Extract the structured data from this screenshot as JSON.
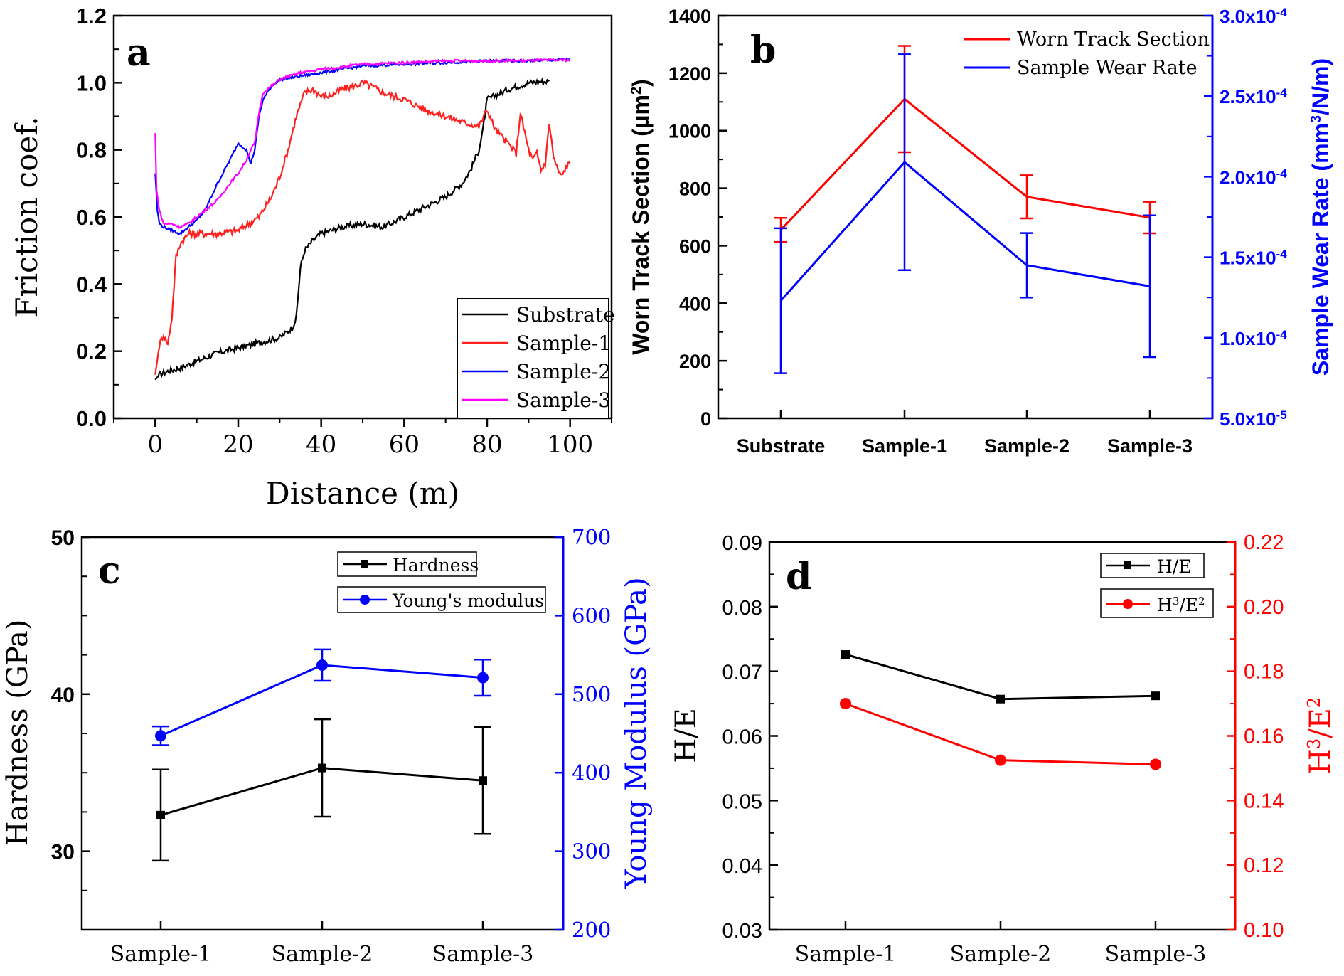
{
  "colors": {
    "black": "#000000",
    "red": "#ff0000",
    "blue": "#0000ff",
    "magenta": "#ff00ff",
    "redPlot": "#ff2020"
  },
  "chart_data": [
    {
      "id": "a",
      "panel_label": "a",
      "type": "line",
      "xlabel": "Distance (m)",
      "ylabel": "Friction coef.",
      "xlim": [
        -10,
        110
      ],
      "ylim": [
        0,
        1.2
      ],
      "xticks": [
        "0",
        "20",
        "40",
        "60",
        "80",
        "100"
      ],
      "yticks": [
        "0.0",
        "0.2",
        "0.4",
        "0.6",
        "0.8",
        "1.0",
        "1.2"
      ],
      "legend_position": "bottom-right",
      "series": [
        {
          "name": "Substrate",
          "color": "#000000",
          "x": [
            0,
            1,
            3,
            6,
            10,
            15,
            20,
            25,
            30,
            33,
            34,
            35,
            36,
            38,
            40,
            45,
            50,
            55,
            60,
            65,
            70,
            74,
            76,
            78,
            79,
            80,
            85,
            90,
            95
          ],
          "y": [
            0.115,
            0.13,
            0.14,
            0.15,
            0.17,
            0.195,
            0.21,
            0.225,
            0.24,
            0.27,
            0.3,
            0.45,
            0.5,
            0.53,
            0.55,
            0.57,
            0.58,
            0.57,
            0.6,
            0.63,
            0.66,
            0.7,
            0.74,
            0.8,
            0.86,
            0.95,
            0.98,
            1.0,
            1.005
          ]
        },
        {
          "name": "Sample-1",
          "color": "#ff2020",
          "x": [
            0,
            1,
            2,
            3,
            4,
            5,
            6,
            8,
            10,
            15,
            20,
            25,
            28,
            30,
            32,
            34,
            36,
            38,
            40,
            42,
            45,
            48,
            50,
            52,
            55,
            60,
            65,
            70,
            75,
            78,
            80,
            82,
            85,
            87,
            88,
            90,
            91,
            92,
            93,
            94,
            95,
            96,
            97,
            98,
            99,
            100
          ],
          "y": [
            0.13,
            0.22,
            0.25,
            0.22,
            0.3,
            0.48,
            0.52,
            0.55,
            0.55,
            0.55,
            0.56,
            0.6,
            0.66,
            0.72,
            0.8,
            0.9,
            0.97,
            0.98,
            0.96,
            0.96,
            0.98,
            0.99,
            1.0,
            0.99,
            0.97,
            0.95,
            0.92,
            0.9,
            0.88,
            0.87,
            0.92,
            0.86,
            0.82,
            0.79,
            0.91,
            0.8,
            0.77,
            0.79,
            0.74,
            0.76,
            0.88,
            0.78,
            0.74,
            0.72,
            0.75,
            0.76
          ]
        },
        {
          "name": "Sample-2",
          "color": "#0000ff",
          "x": [
            0,
            0.5,
            1,
            2,
            4,
            6,
            8,
            10,
            12,
            15,
            18,
            20,
            22,
            23,
            24,
            25,
            26,
            28,
            30,
            35,
            40,
            50,
            60,
            70,
            80,
            90,
            100
          ],
          "y": [
            0.73,
            0.62,
            0.58,
            0.57,
            0.56,
            0.55,
            0.57,
            0.59,
            0.62,
            0.7,
            0.77,
            0.82,
            0.8,
            0.76,
            0.8,
            0.9,
            0.95,
            0.99,
            1.01,
            1.02,
            1.03,
            1.05,
            1.055,
            1.06,
            1.065,
            1.065,
            1.07
          ]
        },
        {
          "name": "Sample-3",
          "color": "#ff00ff",
          "x": [
            0,
            0.3,
            1,
            2,
            4,
            6,
            8,
            10,
            12,
            15,
            18,
            20,
            22,
            23,
            24,
            25,
            26,
            28,
            30,
            35,
            40,
            50,
            60,
            70,
            80,
            90,
            100
          ],
          "y": [
            0.85,
            0.68,
            0.62,
            0.58,
            0.58,
            0.57,
            0.58,
            0.6,
            0.62,
            0.65,
            0.7,
            0.73,
            0.77,
            0.8,
            0.82,
            0.91,
            0.97,
            0.99,
            1.01,
            1.03,
            1.04,
            1.055,
            1.06,
            1.065,
            1.065,
            1.066,
            1.068
          ]
        }
      ]
    },
    {
      "id": "b",
      "panel_label": "b",
      "type": "line",
      "categories": [
        "Substrate",
        "Sample-1",
        "Sample-2",
        "Sample-3"
      ],
      "ylabel": "Worn Track Section (μm²)",
      "ylabel_main": "Worn Track Section (μm",
      "ylabel_sup": "2",
      "ylabel_end": ")",
      "ylim": [
        0,
        1400
      ],
      "yticks": [
        "0",
        "200",
        "400",
        "600",
        "800",
        "1000",
        "1200",
        "1400"
      ],
      "ylabel_right": "Sample Wear Rate (mm³/N/m)",
      "ylabel_right_main": "Sample Wear Rate (mm",
      "ylabel_right_sup": "3",
      "ylabel_right_end": "/N/m)",
      "ylim_right": [
        5e-05,
        0.0003
      ],
      "yticks_right": [
        {
          "m": "5.0x10",
          "e": "-5"
        },
        {
          "m": "1.0x10",
          "e": "-4"
        },
        {
          "m": "1.5x10",
          "e": "-4"
        },
        {
          "m": "2.0x10",
          "e": "-4"
        },
        {
          "m": "2.5x10",
          "e": "-4"
        },
        {
          "m": "3.0x10",
          "e": "-4"
        }
      ],
      "legend_position": "top-right",
      "series": [
        {
          "name": "Worn Track Section",
          "color": "#ff0000",
          "axis": "left",
          "values": [
            655,
            1110,
            770,
            698
          ],
          "err": [
            42,
            185,
            75,
            55
          ]
        },
        {
          "name": "Sample Wear Rate",
          "color": "#0000ff",
          "axis": "right",
          "values": [
            0.000123,
            0.000209,
            0.000145,
            0.000132
          ],
          "err": [
            4.5e-05,
            6.7e-05,
            2e-05,
            4.4e-05
          ]
        }
      ]
    },
    {
      "id": "c",
      "panel_label": "c",
      "type": "line",
      "categories": [
        "Sample-1",
        "Sample-2",
        "Sample-3"
      ],
      "ylabel": "Hardness (GPa)",
      "ylim": [
        25,
        50
      ],
      "yticks": [
        "30",
        "40",
        "50"
      ],
      "ylabel_right": "Young Modulus (GPa)",
      "ylim_right": [
        200,
        700
      ],
      "yticks_right": [
        "200",
        "300",
        "400",
        "500",
        "600",
        "700"
      ],
      "legend_position": "top-right",
      "series": [
        {
          "name": "Hardness",
          "color": "#000000",
          "axis": "left",
          "marker": "square",
          "values": [
            32.3,
            35.3,
            34.5
          ],
          "err": [
            2.9,
            3.1,
            3.4
          ]
        },
        {
          "name": "Young's modulus",
          "color": "#0000ff",
          "axis": "right",
          "marker": "circle",
          "values": [
            447,
            537,
            521
          ],
          "err": [
            12,
            20,
            23
          ]
        }
      ]
    },
    {
      "id": "d",
      "panel_label": "d",
      "type": "line",
      "categories": [
        "Sample-1",
        "Sample-2",
        "Sample-3"
      ],
      "ylabel": "H/E",
      "ylim": [
        0.03,
        0.09
      ],
      "yticks": [
        "0.03",
        "0.04",
        "0.05",
        "0.06",
        "0.07",
        "0.08",
        "0.09"
      ],
      "ylabel_right": "H³/E²",
      "ylabel_right_parts": [
        "H",
        "3",
        "/E",
        "2"
      ],
      "ylim_right": [
        0.1,
        0.22
      ],
      "yticks_right": [
        "0.10",
        "0.12",
        "0.14",
        "0.16",
        "0.18",
        "0.20",
        "0.22"
      ],
      "legend_position": "top-right",
      "series": [
        {
          "name": "H/E",
          "color": "#000000",
          "axis": "left",
          "marker": "square",
          "values": [
            0.0726,
            0.0657,
            0.0662
          ]
        },
        {
          "name": "H³/E²",
          "name_parts": [
            "H",
            "3",
            "/E",
            "2"
          ],
          "color": "#ff0000",
          "axis": "right",
          "marker": "circle",
          "values": [
            0.17,
            0.1525,
            0.1512
          ]
        }
      ]
    }
  ]
}
